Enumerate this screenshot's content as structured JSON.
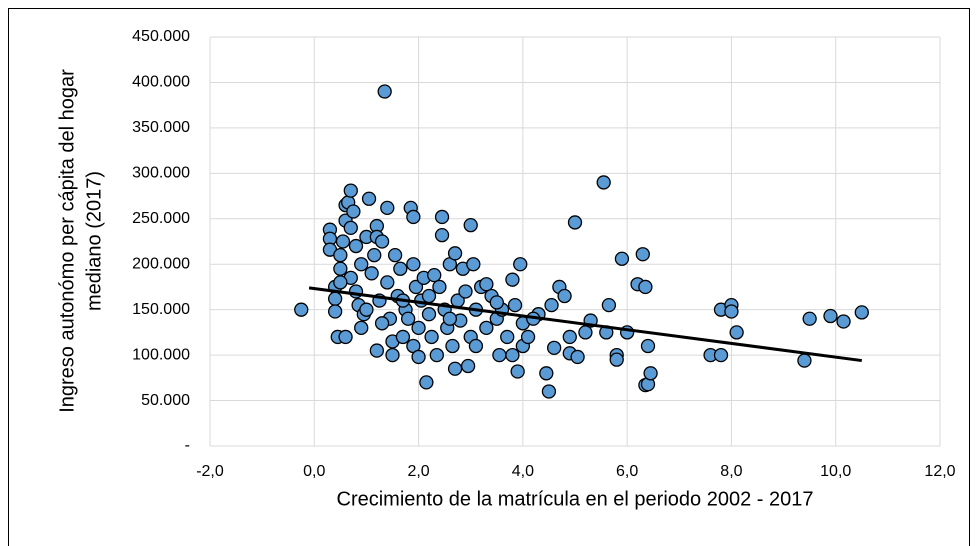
{
  "chart_data": {
    "type": "scatter",
    "xlabel": "Crecimiento de la matrícula en el periodo 2002 - 2017",
    "ylabel": [
      "Ingreso autonómo per cápita del hogar",
      "mediano (2017)"
    ],
    "color": "#5b9bd5",
    "x": [
      -0.25,
      0.3,
      0.3,
      0.3,
      0.4,
      0.4,
      0.4,
      0.45,
      0.5,
      0.5,
      0.55,
      0.6,
      0.6,
      0.65,
      0.7,
      0.7,
      0.75,
      0.6,
      0.7,
      0.8,
      0.8,
      0.85,
      0.9,
      0.9,
      0.95,
      1.0,
      1.05,
      1.1,
      1.15,
      1.2,
      1.2,
      1.25,
      1.2,
      1.3,
      1.35,
      1.4,
      1.4,
      1.45,
      1.5,
      1.5,
      1.55,
      1.6,
      1.65,
      1.7,
      1.75,
      1.8,
      1.85,
      1.9,
      1.9,
      1.9,
      1.95,
      2.0,
      2.0,
      2.05,
      2.1,
      2.15,
      2.2,
      2.25,
      2.3,
      2.35,
      2.4,
      2.45,
      2.45,
      2.5,
      2.55,
      2.6,
      2.65,
      2.7,
      2.7,
      2.75,
      2.8,
      2.85,
      2.9,
      2.95,
      3.0,
      3.0,
      3.05,
      3.1,
      3.2,
      3.3,
      3.4,
      3.5,
      3.55,
      3.6,
      3.7,
      3.8,
      3.8,
      3.85,
      3.9,
      3.95,
      4.0,
      4.0,
      4.1,
      4.3,
      4.45,
      4.5,
      4.55,
      4.6,
      4.7,
      4.8,
      4.9,
      4.9,
      5.0,
      5.05,
      5.2,
      5.3,
      5.55,
      5.6,
      5.65,
      5.8,
      5.8,
      5.9,
      6.0,
      6.2,
      6.3,
      6.35,
      6.35,
      6.4,
      6.4,
      6.45,
      7.6,
      7.8,
      7.8,
      8.0,
      8.0,
      8.1,
      9.4,
      9.5,
      9.9,
      10.15,
      10.5,
      0.5,
      1.0,
      1.3,
      1.7,
      2.2,
      2.6,
      3.1,
      3.3,
      4.2,
      3.5
    ],
    "y": [
      150000,
      238000,
      228000,
      216000,
      175000,
      162000,
      148000,
      120000,
      195000,
      210000,
      225000,
      248000,
      265000,
      268000,
      281000,
      240000,
      258000,
      120000,
      185000,
      220000,
      170000,
      155000,
      200000,
      130000,
      145000,
      230000,
      272000,
      190000,
      210000,
      242000,
      230000,
      160000,
      105000,
      225000,
      390000,
      262000,
      180000,
      140000,
      115000,
      100000,
      210000,
      165000,
      195000,
      120000,
      150000,
      140000,
      262000,
      252000,
      200000,
      110000,
      175000,
      130000,
      98000,
      160000,
      185000,
      70000,
      145000,
      120000,
      188000,
      100000,
      175000,
      252000,
      232000,
      150000,
      130000,
      200000,
      110000,
      212000,
      85000,
      160000,
      138000,
      195000,
      170000,
      88000,
      243000,
      120000,
      200000,
      150000,
      175000,
      130000,
      165000,
      140000,
      100000,
      150000,
      120000,
      183000,
      100000,
      155000,
      82000,
      200000,
      135000,
      110000,
      120000,
      145000,
      80000,
      60000,
      155000,
      108000,
      175000,
      165000,
      120000,
      102000,
      246000,
      98000,
      125000,
      138000,
      290000,
      125000,
      155000,
      100000,
      95000,
      206000,
      125000,
      178000,
      211000,
      175000,
      67000,
      68000,
      110000,
      80000,
      100000,
      100000,
      150000,
      155000,
      148000,
      125000,
      94000,
      140000,
      143000,
      137000,
      147000,
      180000,
      150000,
      135000,
      160000,
      165000,
      140000,
      110000,
      178000,
      140000,
      158000
    ],
    "trendline": {
      "x": [
        -0.1,
        10.5
      ],
      "y": [
        174000,
        94000
      ],
      "color": "#000000"
    },
    "xlim": [
      -2,
      12
    ],
    "xticks": [
      {
        "value": -2,
        "label": "-2,0"
      },
      {
        "value": 0,
        "label": "0,0"
      },
      {
        "value": 2,
        "label": "2,0"
      },
      {
        "value": 4,
        "label": "4,0"
      },
      {
        "value": 6,
        "label": "6,0"
      },
      {
        "value": 8,
        "label": "8,0"
      },
      {
        "value": 10,
        "label": "10,0"
      },
      {
        "value": 12,
        "label": "12,0"
      }
    ],
    "ylim": [
      0,
      450000
    ],
    "yticks": [
      {
        "value": 0,
        "label": "-"
      },
      {
        "value": 50000,
        "label": "50.000"
      },
      {
        "value": 100000,
        "label": "100.000"
      },
      {
        "value": 150000,
        "label": "150.000"
      },
      {
        "value": 200000,
        "label": "200.000"
      },
      {
        "value": 250000,
        "label": "250.000"
      },
      {
        "value": 300000,
        "label": "300.000"
      },
      {
        "value": 350000,
        "label": "350.000"
      },
      {
        "value": 400000,
        "label": "400.000"
      },
      {
        "value": 450000,
        "label": "450.000"
      }
    ],
    "grid": true
  }
}
